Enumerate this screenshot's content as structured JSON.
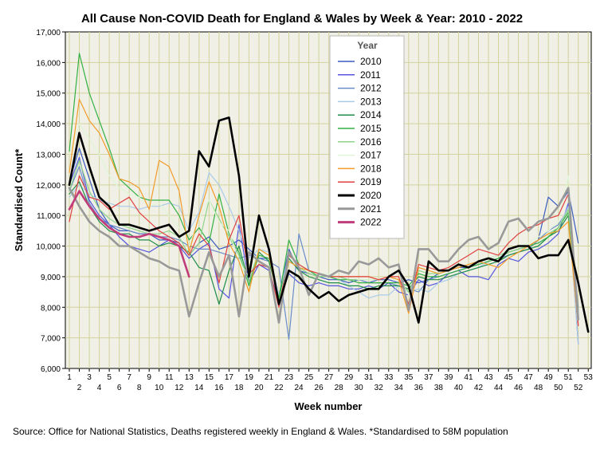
{
  "chart_data": {
    "type": "line",
    "title": "All Cause Non-COVID Death for England & Wales by Week & Year: 2010 - 2022",
    "xlabel": "Week number",
    "ylabel": "Standardised Count*",
    "source": "Source: Office for National Statistics, Deaths registered weekly in England & Wales. *Standardised to 58M population",
    "xlim": [
      1,
      53
    ],
    "ylim": [
      6000,
      17000
    ],
    "x_ticks": [
      "1",
      "2",
      "3",
      "4",
      "5",
      "6",
      "7",
      "8",
      "9",
      "10",
      "11",
      "12",
      "13",
      "14",
      "15",
      "16",
      "17",
      "18",
      "19",
      "20",
      "21",
      "22",
      "23",
      "24",
      "25",
      "26",
      "27",
      "28",
      "29",
      "30",
      "31",
      "32",
      "33",
      "34",
      "35",
      "36",
      "37",
      "38",
      "39",
      "40",
      "41",
      "42",
      "43",
      "44",
      "45",
      "46",
      "47",
      "48",
      "49",
      "50",
      "51",
      "52",
      "53"
    ],
    "y_ticks": [
      "6,000",
      "7,000",
      "8,000",
      "9,000",
      "10,000",
      "11,000",
      "12,000",
      "13,000",
      "14,000",
      "15,000",
      "16,000",
      "17,000"
    ],
    "legend_title": "Year",
    "grid": true,
    "series": [
      {
        "name": "2010",
        "color": "#3a5bbf",
        "width": 1.2,
        "values": [
          12100,
          13200,
          12200,
          11200,
          10700,
          10500,
          10500,
          10400,
          10400,
          10200,
          10200,
          10100,
          9700,
          10100,
          10300,
          9900,
          10000,
          10200,
          9900,
          9600,
          9600,
          8300,
          9900,
          9200,
          9100,
          9000,
          8900,
          8900,
          8800,
          8900,
          8800,
          8900,
          8900,
          8800,
          8900,
          8800,
          8900,
          9100,
          9200,
          9300,
          9300,
          9500,
          9600,
          9700,
          9800,
          9900,
          10000,
          10200,
          11600,
          11300,
          11800,
          10100,
          null
        ]
      },
      {
        "name": "2011",
        "color": "#5555dd",
        "width": 1.2,
        "values": [
          12000,
          12900,
          11500,
          11000,
          10700,
          10300,
          10000,
          9900,
          9800,
          10000,
          10200,
          10000,
          9600,
          9900,
          10100,
          8600,
          8300,
          10700,
          8800,
          9400,
          9200,
          8200,
          9100,
          8800,
          8700,
          8800,
          8700,
          8700,
          8600,
          8600,
          8700,
          8600,
          8800,
          8500,
          8400,
          8900,
          8700,
          8800,
          9100,
          9200,
          9000,
          9000,
          8900,
          9400,
          9600,
          9500,
          9800,
          9900,
          10100,
          10400,
          11400,
          6800,
          null
        ]
      },
      {
        "name": "2012",
        "color": "#6a8cc8",
        "width": 1.2,
        "values": [
          11800,
          12600,
          11400,
          10900,
          10700,
          10600,
          10500,
          10400,
          10400,
          10300,
          10300,
          10200,
          10000,
          9900,
          9900,
          9800,
          9700,
          9600,
          9700,
          9600,
          9500,
          9300,
          6950,
          10400,
          9200,
          9100,
          9000,
          9000,
          8900,
          8900,
          8800,
          8800,
          8800,
          8700,
          8600,
          8500,
          8900,
          9000,
          9100,
          9200,
          9300,
          9400,
          9500,
          9600,
          9700,
          9800,
          9900,
          10200,
          10500,
          10700,
          11200,
          8000,
          null
        ]
      },
      {
        "name": "2013",
        "color": "#aacbe8",
        "width": 1.2,
        "values": [
          11600,
          12000,
          11700,
          11500,
          11400,
          11300,
          11300,
          11200,
          11300,
          11300,
          11400,
          11300,
          10500,
          11100,
          12400,
          12000,
          11300,
          10500,
          9600,
          9900,
          9800,
          8400,
          9700,
          9400,
          9200,
          9100,
          9000,
          8900,
          8700,
          8500,
          8300,
          8400,
          8400,
          8700,
          8500,
          8600,
          8500,
          8800,
          8900,
          9100,
          9200,
          9300,
          9500,
          9600,
          9800,
          9900,
          10000,
          10100,
          10300,
          10600,
          11300,
          6800,
          null
        ]
      },
      {
        "name": "2014",
        "color": "#1e8c4a",
        "width": 1.2,
        "values": [
          11700,
          12100,
          11300,
          10800,
          10500,
          10400,
          10400,
          10200,
          10200,
          10000,
          10100,
          10000,
          9800,
          9300,
          9200,
          8100,
          9200,
          10000,
          8800,
          9800,
          9500,
          8300,
          9600,
          9200,
          9000,
          8900,
          8800,
          8800,
          8700,
          8700,
          8600,
          8700,
          8700,
          8700,
          8600,
          9000,
          8900,
          8900,
          9000,
          9100,
          9200,
          9300,
          9400,
          9500,
          9700,
          9800,
          9900,
          10000,
          10300,
          10500,
          11000,
          7900,
          null
        ]
      },
      {
        "name": "2015",
        "color": "#33b044",
        "width": 1.2,
        "values": [
          13100,
          16300,
          15000,
          14100,
          13200,
          12200,
          11900,
          11600,
          11500,
          11500,
          11500,
          11000,
          10200,
          10600,
          10100,
          11700,
          10400,
          9800,
          8700,
          9700,
          9600,
          8300,
          10200,
          9400,
          9200,
          9000,
          9000,
          8900,
          8900,
          8800,
          8800,
          8800,
          8800,
          8800,
          8700,
          9100,
          9000,
          9000,
          9100,
          9200,
          9300,
          9400,
          9500,
          9600,
          9800,
          9900,
          10000,
          10100,
          10300,
          10600,
          11100,
          7800,
          null
        ]
      },
      {
        "name": "2016",
        "color": "#8fd48a",
        "width": 1.2,
        "values": [
          11800,
          12800,
          11800,
          11200,
          10900,
          10700,
          10600,
          10500,
          10400,
          10400,
          10500,
          10300,
          9700,
          10100,
          11500,
          10900,
          10300,
          9700,
          8800,
          9900,
          9700,
          8200,
          9500,
          9300,
          9100,
          9000,
          9000,
          9000,
          8900,
          8900,
          8900,
          8900,
          9000,
          8900,
          8500,
          9200,
          9100,
          9100,
          9200,
          9300,
          9400,
          9500,
          9600,
          9700,
          9800,
          9900,
          10000,
          10200,
          10400,
          10600,
          11200,
          7700,
          null
        ]
      },
      {
        "name": "2017",
        "color": "#e0f5d8",
        "width": 1.2,
        "values": [
          13000,
          14000,
          13500,
          13000,
          12300,
          11900,
          11700,
          11600,
          11300,
          11400,
          11000,
          10600,
          10000,
          10900,
          11500,
          10800,
          10500,
          9500,
          9000,
          9900,
          9700,
          8100,
          9700,
          9400,
          9200,
          9100,
          9100,
          9000,
          9000,
          8900,
          8900,
          8900,
          9000,
          8900,
          8400,
          9300,
          9200,
          9100,
          9200,
          9300,
          9400,
          9500,
          9600,
          9700,
          9900,
          10000,
          10100,
          10300,
          10500,
          10800,
          12300,
          7600,
          null
        ]
      },
      {
        "name": "2018",
        "color": "#f39a28",
        "width": 1.2,
        "values": [
          12400,
          14800,
          14100,
          13700,
          13000,
          12200,
          12100,
          11900,
          11200,
          12800,
          12600,
          11800,
          9800,
          11000,
          12100,
          11300,
          10100,
          9500,
          8500,
          9900,
          9700,
          8100,
          9500,
          9300,
          9200,
          9100,
          9000,
          9000,
          9000,
          9000,
          9000,
          8900,
          9000,
          8900,
          7800,
          9300,
          9200,
          9100,
          9200,
          9300,
          9400,
          9500,
          9400,
          9300,
          9600,
          9800,
          10000,
          10200,
          10400,
          10500,
          10800,
          7400,
          null
        ]
      },
      {
        "name": "2019",
        "color": "#e04040",
        "width": 1.2,
        "values": [
          10800,
          12300,
          11600,
          11500,
          11200,
          11400,
          11600,
          11100,
          10800,
          10500,
          10300,
          10100,
          9700,
          10400,
          10000,
          8800,
          10200,
          11000,
          9100,
          9400,
          9300,
          8000,
          9700,
          9400,
          9200,
          9100,
          9000,
          9000,
          9000,
          9000,
          9000,
          8900,
          9000,
          9000,
          8100,
          9400,
          9300,
          9200,
          9300,
          9500,
          9700,
          9900,
          9800,
          9700,
          10100,
          10400,
          10600,
          10700,
          10900,
          11000,
          11700,
          7400,
          null
        ]
      },
      {
        "name": "2020",
        "color": "#000000",
        "width": 2.6,
        "values": [
          12000,
          13700,
          12600,
          11600,
          11300,
          10700,
          10700,
          10600,
          10500,
          10600,
          10700,
          10300,
          10500,
          13100,
          12600,
          14100,
          14200,
          12300,
          9000,
          11000,
          9900,
          8100,
          9200,
          9000,
          8600,
          8300,
          8500,
          8200,
          8400,
          8500,
          8600,
          8600,
          9000,
          9200,
          8700,
          7500,
          9500,
          9200,
          9200,
          9400,
          9300,
          9500,
          9600,
          9500,
          9900,
          10000,
          10000,
          9600,
          9700,
          9700,
          10200,
          8800,
          7200
        ]
      },
      {
        "name": "2021",
        "color": "#999999",
        "width": 2.6,
        "values": [
          11900,
          11300,
          10800,
          10500,
          10300,
          10000,
          10000,
          9800,
          9600,
          9500,
          9300,
          9200,
          7700,
          8800,
          9800,
          9000,
          9700,
          7700,
          9800,
          9500,
          9300,
          7500,
          9800,
          9300,
          8400,
          9100,
          9000,
          9200,
          9100,
          9500,
          9400,
          9600,
          9300,
          9400,
          7900,
          9900,
          9900,
          9500,
          9500,
          9900,
          10200,
          10300,
          9900,
          10100,
          10800,
          10900,
          10500,
          10800,
          10900,
          11300,
          11900,
          7600,
          null
        ]
      },
      {
        "name": "2022",
        "color": "#c03c7a",
        "width": 2.6,
        "values": [
          11200,
          11800,
          11300,
          10900,
          10600,
          10400,
          10300,
          10300,
          10400,
          10300,
          10200,
          10000,
          9000,
          null,
          null,
          null,
          null,
          null,
          null,
          null,
          null,
          null,
          null,
          null,
          null,
          null,
          null,
          null,
          null,
          null,
          null,
          null,
          null,
          null,
          null,
          null,
          null,
          null,
          null,
          null,
          null,
          null,
          null,
          null,
          null,
          null,
          null,
          null,
          null,
          null,
          null,
          null,
          null
        ]
      }
    ]
  }
}
